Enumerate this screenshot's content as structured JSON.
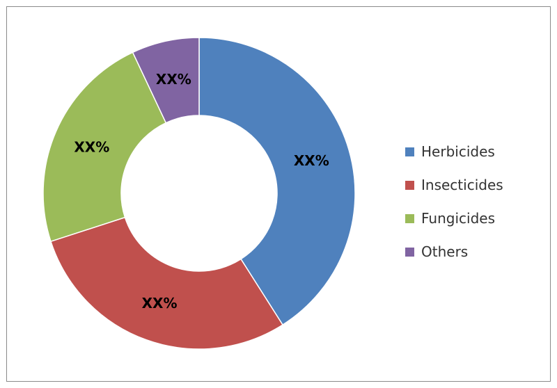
{
  "chart_data": {
    "type": "pie",
    "donut": true,
    "title": "",
    "legend_position": "right",
    "series": [
      {
        "label": "Herbicides",
        "value": 41,
        "color": "#4F81BD",
        "data_label": "XX%"
      },
      {
        "label": "Insecticides",
        "value": 29,
        "color": "#C0504D",
        "data_label": "XX%"
      },
      {
        "label": "Fungicides",
        "value": 23,
        "color": "#9BBB59",
        "data_label": "XX%"
      },
      {
        "label": "Others",
        "value": 7,
        "color": "#8064A2",
        "data_label": "XX%"
      }
    ]
  }
}
